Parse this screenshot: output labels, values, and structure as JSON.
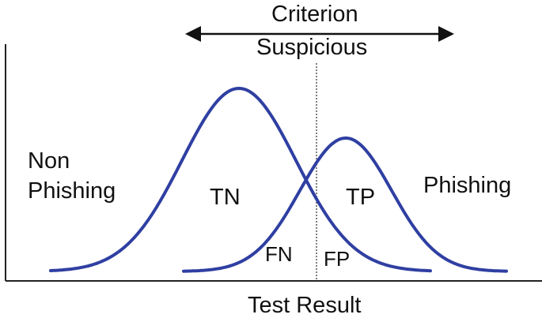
{
  "diagram": {
    "criterion_label": "Criterion",
    "suspicious_label": "Suspicious",
    "non_phishing_line1": "Non",
    "non_phishing_line2": "Phishing",
    "phishing_label": "Phishing",
    "tn_label": "TN",
    "tp_label": "TP",
    "fn_label": "FN",
    "fp_label": "FP",
    "x_axis_label": "Test Result"
  },
  "colors": {
    "curve": "#2f3fa2",
    "axis": "#222222",
    "criterion_line": "#555555",
    "text": "#111111"
  }
}
